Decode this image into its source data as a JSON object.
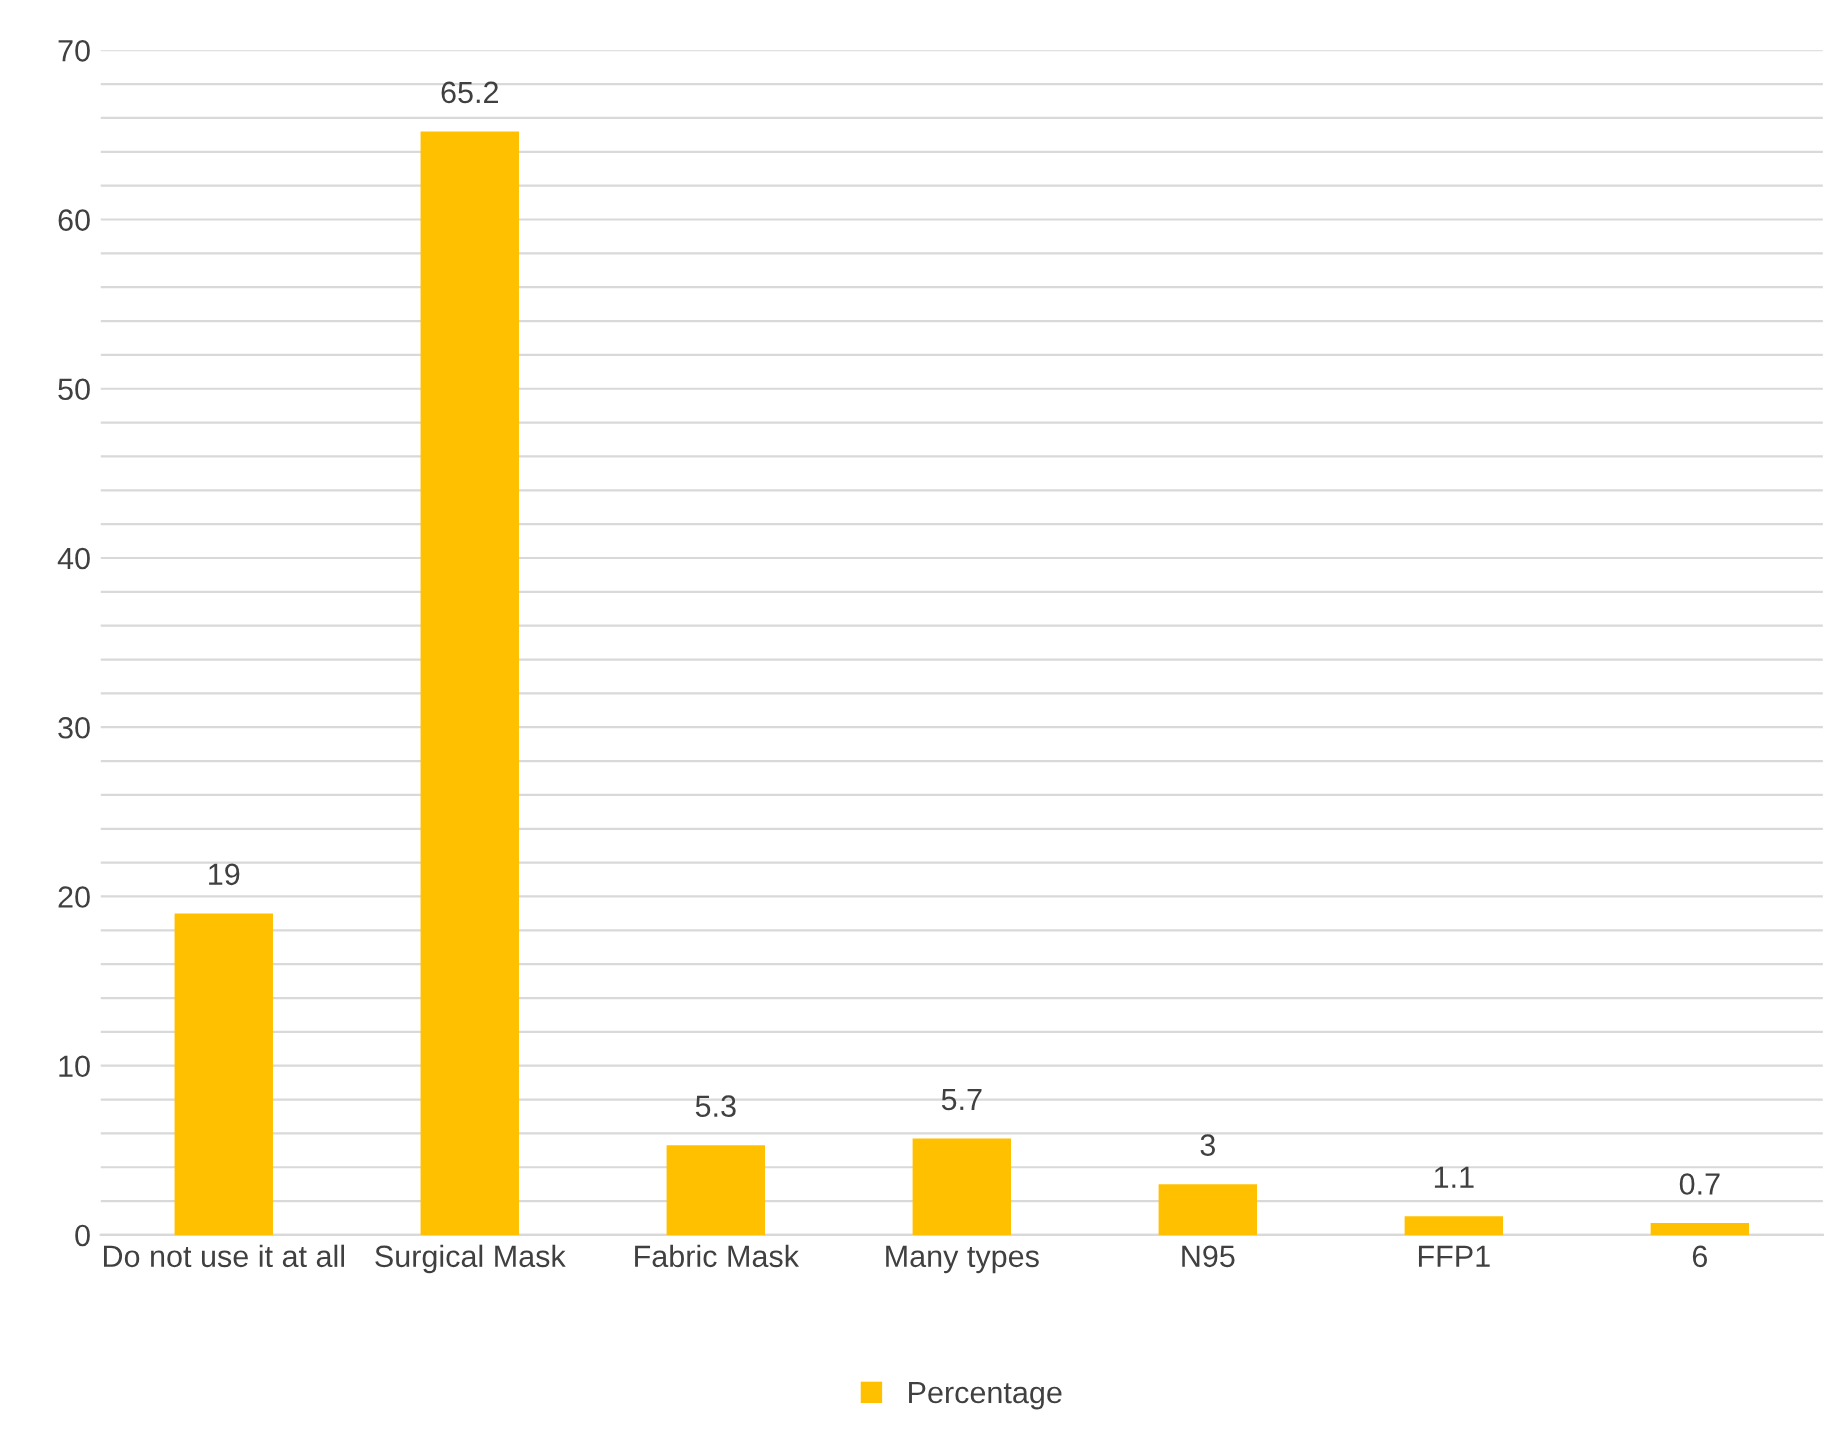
{
  "chart_data": {
    "type": "bar",
    "categories": [
      "Do not use it at all",
      "Surgical Mask",
      "Fabric Mask",
      "Many types",
      "N95",
      "FFP1",
      "6"
    ],
    "series": [
      {
        "name": "Percentage",
        "color": "#ffc000",
        "values": [
          19,
          65.2,
          5.3,
          5.7,
          3,
          1.1,
          0.7
        ]
      }
    ],
    "ylim": [
      0,
      70
    ],
    "yticks": [
      0,
      {
        "value": 2,
        "label": null
      },
      {
        "value": 4,
        "label": null
      },
      {
        "value": 6,
        "label": null
      },
      {
        "value": 8,
        "label": null
      },
      10,
      {
        "value": 12,
        "label": null
      },
      {
        "value": 14,
        "label": null
      },
      {
        "value": 16,
        "label": null
      },
      {
        "value": 18,
        "label": null
      },
      20,
      {
        "value": 22,
        "label": null
      },
      {
        "value": 24,
        "label": null
      },
      {
        "value": 26,
        "label": null
      },
      {
        "value": 28,
        "label": null
      },
      30,
      {
        "value": 32,
        "label": null
      },
      {
        "value": 34,
        "label": null
      },
      {
        "value": 36,
        "label": null
      },
      {
        "value": 38,
        "label": null
      },
      40,
      {
        "value": 42,
        "label": null
      },
      {
        "value": 44,
        "label": null
      },
      {
        "value": 46,
        "label": null
      },
      {
        "value": 48,
        "label": null
      },
      50,
      {
        "value": 52,
        "label": null
      },
      {
        "value": 54,
        "label": null
      },
      {
        "value": 56,
        "label": null
      },
      {
        "value": 58,
        "label": null
      },
      60,
      {
        "value": 62,
        "label": null
      },
      {
        "value": 64,
        "label": null
      },
      {
        "value": 66,
        "label": null
      },
      {
        "value": 68,
        "label": null
      },
      70
    ],
    "grid": "y",
    "legend": "bottom",
    "data_labels": true
  }
}
